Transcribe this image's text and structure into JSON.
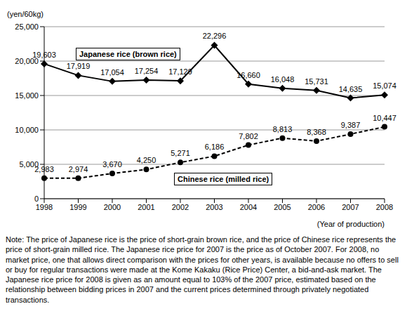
{
  "chart_data": {
    "type": "line",
    "y_label": "(yen/60kg)",
    "x_label": "(Year of production)",
    "categories": [
      "1998",
      "1999",
      "2000",
      "2001",
      "2002",
      "2003",
      "2004",
      "2005",
      "2006",
      "2007",
      "2008"
    ],
    "series": [
      {
        "name": "Japanese rice (brown rice)",
        "color": "#000000",
        "marker": "diamond",
        "line_style": "solid",
        "values": [
          19603,
          17919,
          17054,
          17254,
          17129,
          22296,
          16660,
          16048,
          15731,
          14635,
          15074
        ],
        "value_labels": [
          "19,603",
          "17,919",
          "17,054",
          "17,254",
          "17,129",
          "22,296",
          "16,660",
          "16,048",
          "15,731",
          "14,635",
          "15,074"
        ]
      },
      {
        "name": "Chinese rice (milled rice)",
        "color": "#000000",
        "marker": "circle",
        "line_style": "dashed",
        "values": [
          2983,
          2974,
          3670,
          4250,
          5271,
          6186,
          7802,
          8813,
          8368,
          9387,
          10447
        ],
        "value_labels": [
          "2,983",
          "2,974",
          "3,670",
          "4,250",
          "5,271",
          "6,186",
          "7,802",
          "8,813",
          "8,368",
          "9,387",
          "10,447"
        ]
      }
    ],
    "ylim": [
      0,
      25000
    ],
    "yticks": [
      0,
      {
        "value": 5000,
        "label": "5,000"
      },
      {
        "value": 10000,
        "label": "10,000"
      },
      {
        "value": 15000,
        "label": "15,000"
      },
      {
        "value": 20000,
        "label": "20,000"
      },
      {
        "value": 25000,
        "label": "25,000"
      }
    ],
    "grid": true,
    "data_labels": true,
    "note": "Note: The price of Japanese rice is the price of short-grain brown rice, and the price of Chinese rice represents the price of short-grain milled rice. The Japanese rice price for 2007 is the price as of October 2007. For 2008, no market price, one that allows direct comparison with the prices for other years, is available because no offers to sell or buy for regular transactions were made at the Kome Kakaku (Rice Price) Center, a bid-and-ask market. The Japanese rice price for 2008 is given as an amount equal to 103% of the 2007 price, estimated based on the relationship between bidding prices in 2007 and the current prices determined through privately negotiated transactions."
  }
}
